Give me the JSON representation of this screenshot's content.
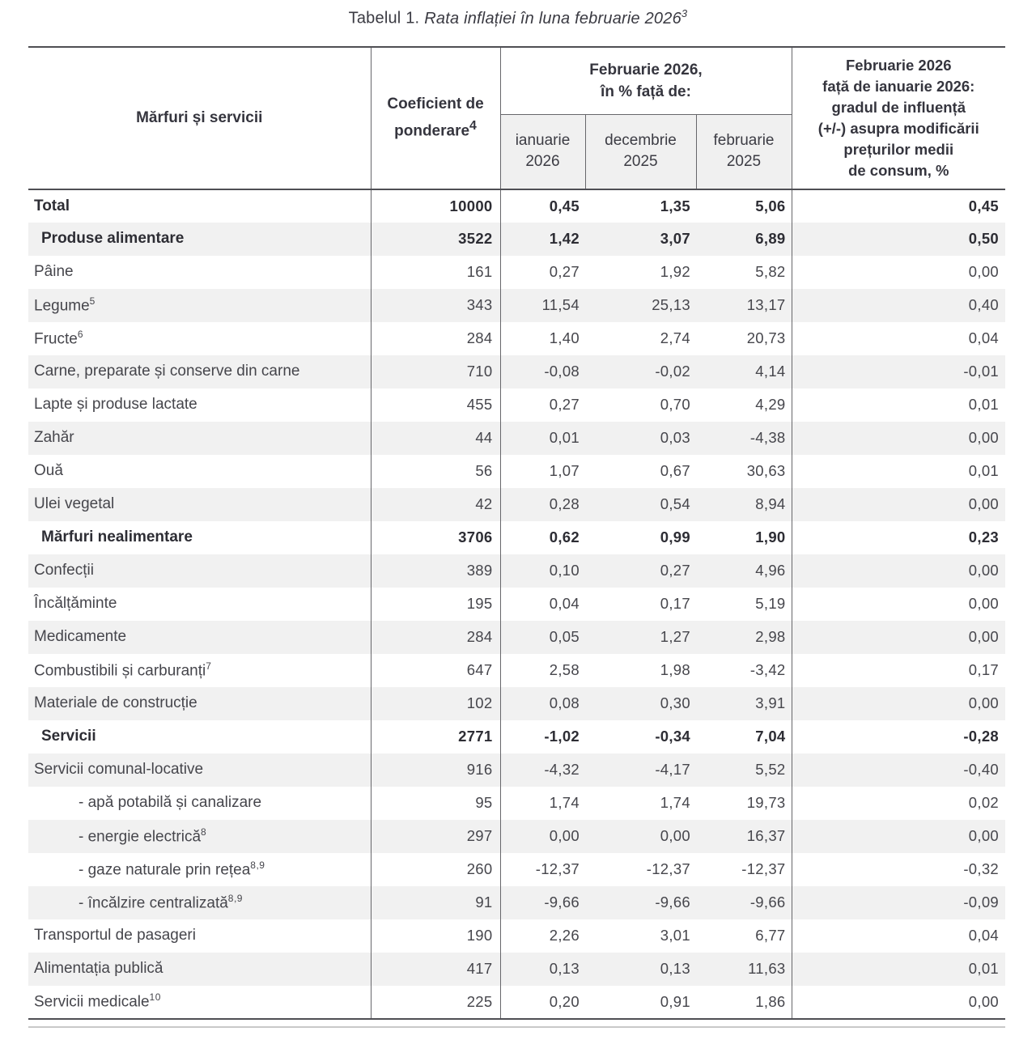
{
  "page": {
    "title_prefix": "Tabelul 1.",
    "title_italic": "Rata inflației în luna februarie 2026",
    "title_sup": "3"
  },
  "table": {
    "headers": {
      "goods": "Mărfuri și servicii",
      "coefficient": "Coeficient de\nponderare",
      "coefficient_sup": "4",
      "group": "Februarie 2026,\nîn % față de:",
      "months": [
        "ianuarie\n2026",
        "decembrie\n2025",
        "februarie\n2025"
      ],
      "influence": "Februarie 2026\nfață de ianuarie 2026:\ngradul de influență\n(+/-) asupra modificării\nprețurilor medii\nde consum, %"
    },
    "rows": [
      {
        "label": "Total",
        "sup": "",
        "style": "total",
        "coef": "10000",
        "vs_january": "0,45",
        "vs_december": "1,35",
        "vs_february": "5,06",
        "influence": "0,45"
      },
      {
        "label": "Produse alimentare",
        "sup": "",
        "style": "section",
        "coef": "3522",
        "vs_january": "1,42",
        "vs_december": "3,07",
        "vs_february": "6,89",
        "influence": "0,50"
      },
      {
        "label": "Pâine",
        "sup": "",
        "style": "item",
        "coef": "161",
        "vs_january": "0,27",
        "vs_december": "1,92",
        "vs_february": "5,82",
        "influence": "0,00"
      },
      {
        "label": "Legume",
        "sup": "5",
        "style": "item",
        "coef": "343",
        "vs_january": "11,54",
        "vs_december": "25,13",
        "vs_february": "13,17",
        "influence": "0,40"
      },
      {
        "label": "Fructe",
        "sup": "6",
        "style": "item",
        "coef": "284",
        "vs_january": "1,40",
        "vs_december": "2,74",
        "vs_february": "20,73",
        "influence": "0,04"
      },
      {
        "label": "Carne, preparate și conserve din carne",
        "sup": "",
        "style": "item",
        "coef": "710",
        "vs_january": "-0,08",
        "vs_december": "-0,02",
        "vs_february": "4,14",
        "influence": "-0,01"
      },
      {
        "label": "Lapte și produse lactate",
        "sup": "",
        "style": "item",
        "coef": "455",
        "vs_january": "0,27",
        "vs_december": "0,70",
        "vs_february": "4,29",
        "influence": "0,01"
      },
      {
        "label": "Zahăr",
        "sup": "",
        "style": "item",
        "coef": "44",
        "vs_january": "0,01",
        "vs_december": "0,03",
        "vs_february": "-4,38",
        "influence": "0,00"
      },
      {
        "label": "Ouă",
        "sup": "",
        "style": "item",
        "coef": "56",
        "vs_january": "1,07",
        "vs_december": "0,67",
        "vs_february": "30,63",
        "influence": "0,01"
      },
      {
        "label": "Ulei vegetal",
        "sup": "",
        "style": "item",
        "coef": "42",
        "vs_january": "0,28",
        "vs_december": "0,54",
        "vs_february": "8,94",
        "influence": "0,00"
      },
      {
        "label": "Mărfuri nealimentare",
        "sup": "",
        "style": "section",
        "coef": "3706",
        "vs_january": "0,62",
        "vs_december": "0,99",
        "vs_february": "1,90",
        "influence": "0,23"
      },
      {
        "label": "Confecții",
        "sup": "",
        "style": "item",
        "coef": "389",
        "vs_january": "0,10",
        "vs_december": "0,27",
        "vs_february": "4,96",
        "influence": "0,00"
      },
      {
        "label": "Încălțăminte",
        "sup": "",
        "style": "item",
        "coef": "195",
        "vs_january": "0,04",
        "vs_december": "0,17",
        "vs_february": "5,19",
        "influence": "0,00"
      },
      {
        "label": "Medicamente",
        "sup": "",
        "style": "item",
        "coef": "284",
        "vs_january": "0,05",
        "vs_december": "1,27",
        "vs_february": "2,98",
        "influence": "0,00"
      },
      {
        "label": "Combustibili și carburanți",
        "sup": "7",
        "style": "item",
        "coef": "647",
        "vs_january": "2,58",
        "vs_december": "1,98",
        "vs_february": "-3,42",
        "influence": "0,17"
      },
      {
        "label": "Materiale de construcție",
        "sup": "",
        "style": "item",
        "coef": "102",
        "vs_january": "0,08",
        "vs_december": "0,30",
        "vs_february": "3,91",
        "influence": "0,00"
      },
      {
        "label": "Servicii",
        "sup": "",
        "style": "section",
        "coef": "2771",
        "vs_january": "-1,02",
        "vs_december": "-0,34",
        "vs_february": "7,04",
        "influence": "-0,28"
      },
      {
        "label": "Servicii comunal-locative",
        "sup": "",
        "style": "item",
        "coef": "916",
        "vs_january": "-4,32",
        "vs_december": "-4,17",
        "vs_february": "5,52",
        "influence": "-0,40"
      },
      {
        "label": "- apă potabilă și canalizare",
        "sup": "",
        "style": "sub",
        "coef": "95",
        "vs_january": "1,74",
        "vs_december": "1,74",
        "vs_february": "19,73",
        "influence": "0,02"
      },
      {
        "label": "- energie electrică",
        "sup": "8",
        "style": "sub",
        "coef": "297",
        "vs_january": "0,00",
        "vs_december": "0,00",
        "vs_february": "16,37",
        "influence": "0,00"
      },
      {
        "label": "- gaze naturale prin rețea",
        "sup": "8,9",
        "style": "sub",
        "coef": "260",
        "vs_january": "-12,37",
        "vs_december": "-12,37",
        "vs_february": "-12,37",
        "influence": "-0,32"
      },
      {
        "label": "- încălzire centralizată",
        "sup": "8,9",
        "style": "sub",
        "coef": "91",
        "vs_january": "-9,66",
        "vs_december": "-9,66",
        "vs_february": "-9,66",
        "influence": "-0,09"
      },
      {
        "label": "Transportul de pasageri",
        "sup": "",
        "style": "item",
        "coef": "190",
        "vs_january": "2,26",
        "vs_december": "3,01",
        "vs_february": "6,77",
        "influence": "0,04"
      },
      {
        "label": "Alimentația publică",
        "sup": "",
        "style": "item",
        "coef": "417",
        "vs_january": "0,13",
        "vs_december": "0,13",
        "vs_february": "11,63",
        "influence": "0,01"
      },
      {
        "label": "Servicii medicale",
        "sup": "10",
        "style": "item",
        "coef": "225",
        "vs_january": "0,20",
        "vs_december": "0,91",
        "vs_february": "1,86",
        "influence": "0,00"
      }
    ]
  }
}
